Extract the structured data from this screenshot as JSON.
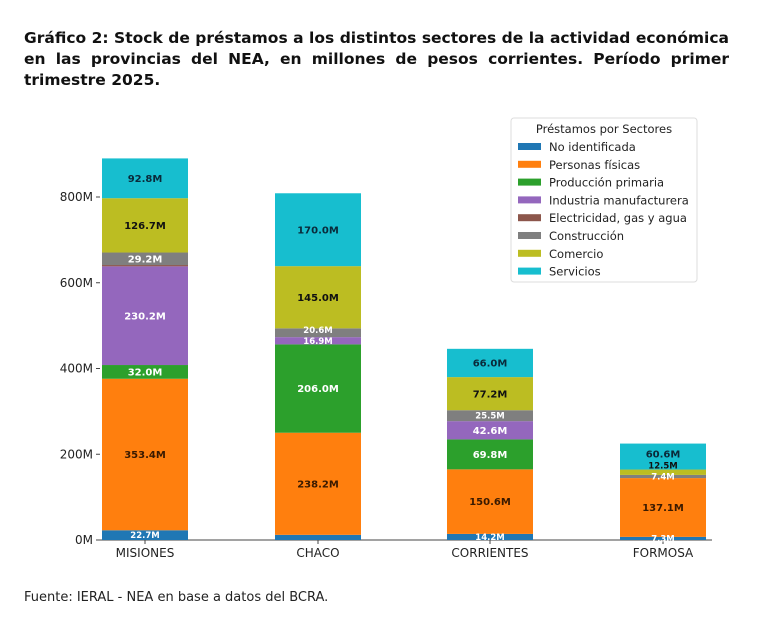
{
  "title": "Gráfico 2: Stock de préstamos a los distintos sectores de la actividad económica en las provincias del NEA, en millones de pesos corrientes. Período primer trimestre 2025.",
  "source": "Fuente: IERAL - NEA en base a datos del BCRA.",
  "chart_data": {
    "type": "bar",
    "stacked": true,
    "categories": [
      "MISIONES",
      "CHACO",
      "CORRIENTES",
      "FORMOSA"
    ],
    "yticks": [
      0,
      200,
      400,
      600,
      800
    ],
    "ytick_labels": [
      "0M",
      "200M",
      "400M",
      "600M",
      "800M"
    ],
    "ylim": [
      0,
      900
    ],
    "grid": false,
    "legend": {
      "title": "Préstamos por Sectores",
      "placement": "top-right"
    },
    "series": [
      {
        "name": "No identificada",
        "color": "#1f77b4",
        "values": [
          22.7,
          12,
          14.2,
          7.3
        ],
        "labels": [
          "22.7M",
          "",
          "14.2M",
          "7.3M"
        ],
        "label_color": "#ffffff"
      },
      {
        "name": "Personas físicas",
        "color": "#ff7f0e",
        "values": [
          353.4,
          238.2,
          150.6,
          137.1
        ],
        "labels": [
          "353.4M",
          "238.2M",
          "150.6M",
          "137.1M"
        ],
        "label_color": "#3a1a00"
      },
      {
        "name": "Producción primaria",
        "color": "#2ca02c",
        "values": [
          32.0,
          206.0,
          69.8,
          0
        ],
        "labels": [
          "32.0M",
          "206.0M",
          "69.8M",
          ""
        ],
        "label_color": "#ffffff"
      },
      {
        "name": "Industria manufacturera",
        "color": "#9467bd",
        "values": [
          230.2,
          16.9,
          42.6,
          0
        ],
        "labels": [
          "230.2M",
          "16.9M",
          "42.6M",
          ""
        ],
        "label_color": "#ffffff"
      },
      {
        "name": "Electricidad, gas y agua",
        "color": "#8c564b",
        "values": [
          3,
          0,
          0,
          0
        ],
        "labels": [
          "",
          "",
          "",
          ""
        ],
        "label_color": "#ffffff"
      },
      {
        "name": "Construcción",
        "color": "#7f7f7f",
        "values": [
          29.2,
          20.6,
          25.5,
          7.4
        ],
        "labels": [
          "29.2M",
          "20.6M",
          "25.5M",
          "7.4M"
        ],
        "label_color": "#ffffff"
      },
      {
        "name": "Comercio",
        "color": "#bcbd22",
        "values": [
          126.7,
          145.0,
          77.2,
          12.5
        ],
        "labels": [
          "126.7M",
          "145.0M",
          "77.2M",
          "12.5M"
        ],
        "label_color": "#111111"
      },
      {
        "name": "Servicios",
        "color": "#17becf",
        "values": [
          92.8,
          170.0,
          66.0,
          60.6
        ],
        "labels": [
          "92.8M",
          "170.0M",
          "66.0M",
          "60.6M"
        ],
        "label_color": "#0a2a3a"
      }
    ]
  }
}
